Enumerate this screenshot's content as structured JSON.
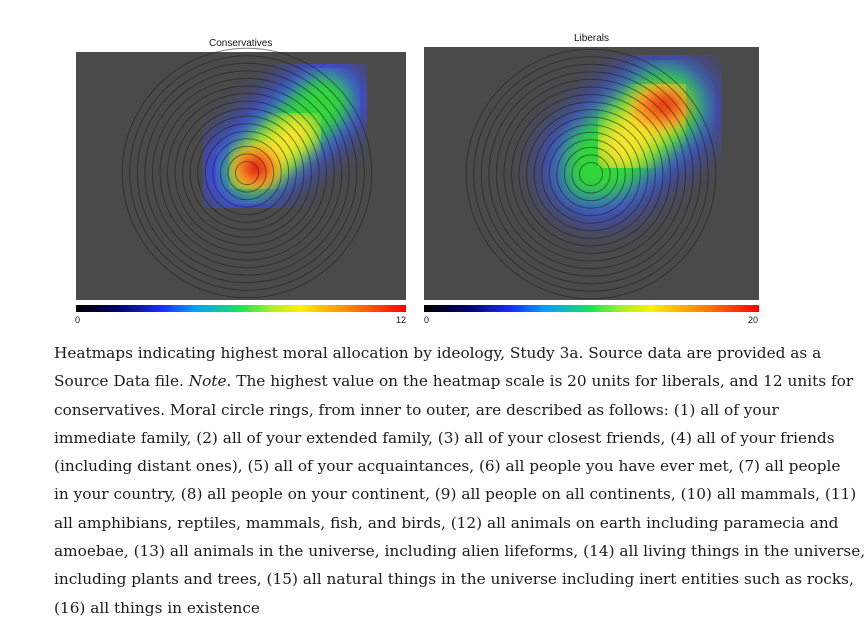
{
  "figure": {
    "panels": [
      {
        "title": "Conservatives",
        "scale_min": "0",
        "scale_max": "12"
      },
      {
        "title": "Liberals",
        "scale_min": "0",
        "scale_max": "20"
      }
    ]
  },
  "caption": {
    "lines": [
      "Heatmaps indicating highest moral allocation by ideology, Study 3a. Source data are provided as a",
      "Source Data file. ",
      "conservatives. Moral circle rings, from inner to outer, are described as follows: (1) all of your",
      "immediate family, (2) all of your extended family, (3) all of your closest friends, (4) all of your friends",
      "(including distant ones), (5) all of your acquaintances, (6) all people you have ever met, (7) all people",
      "in your country, (8) all people on your continent, (9) all people on all continents, (10) all mammals, (11)",
      "all amphibians, reptiles, mammals, fish, and birds, (12) all animals on earth including paramecia and",
      "amoebae, (13) all animals in the universe, including alien lifeforms, (14) all living things in the universe,",
      "including plants and trees, (15) all natural things in the universe including inert entities such as rocks,",
      "(16) all things in existence"
    ],
    "note_label": "Note",
    "note_text": ". The highest value on the heatmap scale is 20 units for liberals, and 12 units for"
  }
}
